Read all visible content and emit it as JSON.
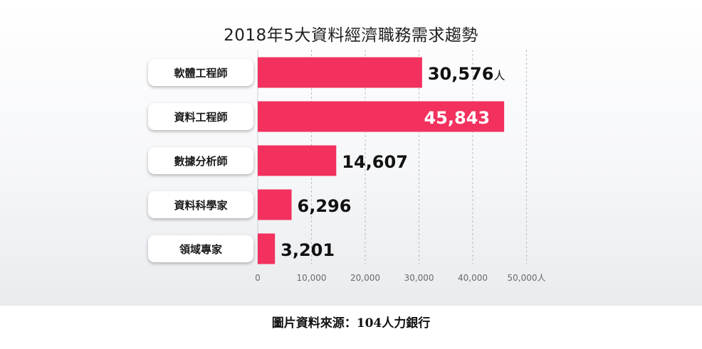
{
  "chart_data": {
    "type": "bar",
    "orientation": "horizontal",
    "title": "2018年5大資料經濟職務需求趨勢",
    "categories": [
      "軟體工程師",
      "資料工程師",
      "數據分析師",
      "資料科學家",
      "領域專家"
    ],
    "values": [
      30576,
      45843,
      14607,
      6296,
      3201
    ],
    "data_labels": [
      "30,576",
      "45,843",
      "14,607",
      "6,296",
      "3,201"
    ],
    "data_label_unit": "人",
    "xlim": [
      0,
      50000
    ],
    "xticks": [
      0,
      10000,
      20000,
      30000,
      40000,
      50000
    ],
    "xtick_labels": [
      "0",
      "10,000",
      "20,000",
      "30,000",
      "40,000",
      "50,000人"
    ],
    "bar_color": "#f2315e",
    "grid": "vertical dashed",
    "legend": "none"
  },
  "source_caption": "圖片資料來源：104人力銀行"
}
